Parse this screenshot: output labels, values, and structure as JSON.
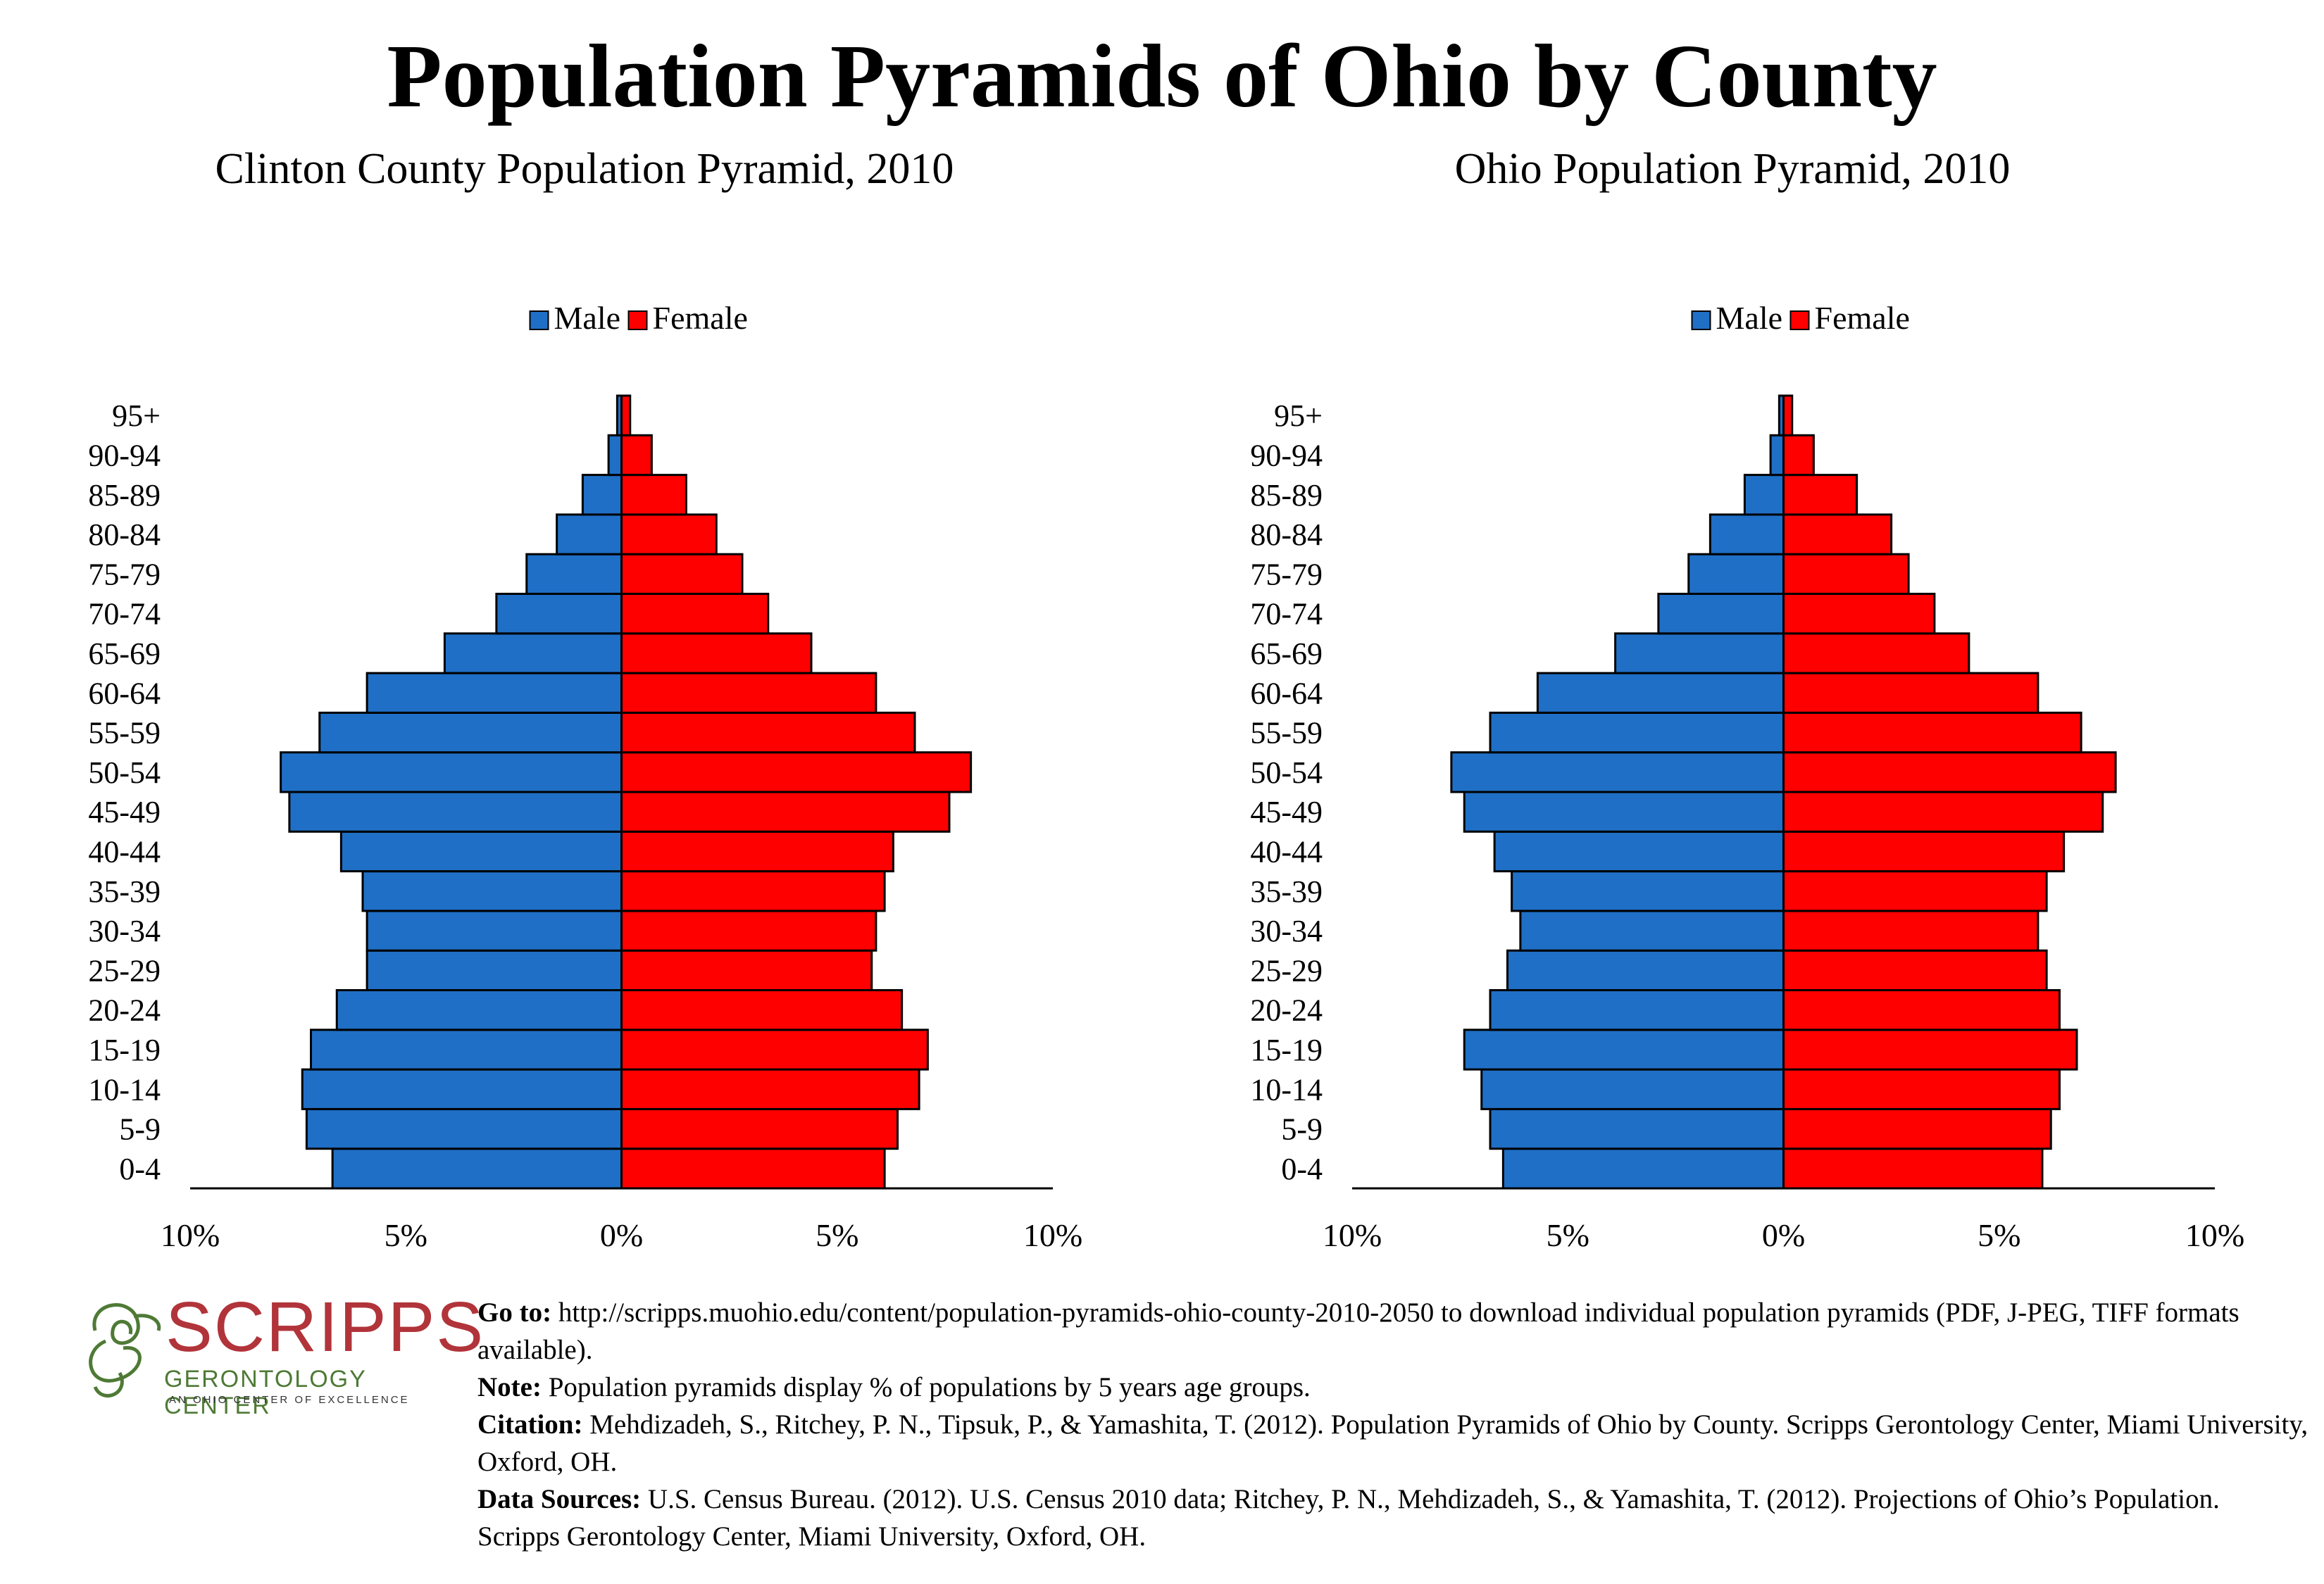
{
  "title": "Population Pyramids of Ohio by County",
  "legend": {
    "male": "Male",
    "female": "Female",
    "male_color": "#1f6fc6",
    "female_color": "#ff0000"
  },
  "chart_data": [
    {
      "type": "bar",
      "title": "Clinton County Population Pyramid, 2010",
      "categories": [
        "0-4",
        "5-9",
        "10-14",
        "15-19",
        "20-24",
        "25-29",
        "30-34",
        "35-39",
        "40-44",
        "45-49",
        "50-54",
        "55-59",
        "60-64",
        "65-69",
        "70-74",
        "75-79",
        "80-84",
        "85-89",
        "90-94",
        "95+"
      ],
      "series": [
        {
          "name": "Male",
          "values": [
            6.7,
            7.3,
            7.4,
            7.2,
            6.6,
            5.9,
            5.9,
            6.0,
            6.5,
            7.7,
            7.9,
            7.0,
            5.9,
            4.1,
            2.9,
            2.2,
            1.5,
            0.9,
            0.3,
            0.1
          ]
        },
        {
          "name": "Female",
          "values": [
            6.1,
            6.4,
            6.9,
            7.1,
            6.5,
            5.8,
            5.9,
            6.1,
            6.3,
            7.6,
            8.1,
            6.8,
            5.9,
            4.4,
            3.4,
            2.8,
            2.2,
            1.5,
            0.7,
            0.2
          ]
        }
      ],
      "xlim": [
        -10,
        10
      ],
      "x_ticks": [
        "10%",
        "5%",
        "0%",
        "5%",
        "10%"
      ]
    },
    {
      "type": "bar",
      "title": "Ohio Population Pyramid, 2010",
      "categories": [
        "0-4",
        "5-9",
        "10-14",
        "15-19",
        "20-24",
        "25-29",
        "30-34",
        "35-39",
        "40-44",
        "45-49",
        "50-54",
        "55-59",
        "60-64",
        "65-69",
        "70-74",
        "75-79",
        "80-84",
        "85-89",
        "90-94",
        "95+"
      ],
      "series": [
        {
          "name": "Male",
          "values": [
            6.5,
            6.8,
            7.0,
            7.4,
            6.8,
            6.4,
            6.1,
            6.3,
            6.7,
            7.4,
            7.7,
            6.8,
            5.7,
            3.9,
            2.9,
            2.2,
            1.7,
            0.9,
            0.3,
            0.1
          ]
        },
        {
          "name": "Female",
          "values": [
            6.0,
            6.2,
            6.4,
            6.8,
            6.4,
            6.1,
            5.9,
            6.1,
            6.5,
            7.4,
            7.7,
            6.9,
            5.9,
            4.3,
            3.5,
            2.9,
            2.5,
            1.7,
            0.7,
            0.2
          ]
        }
      ],
      "xlim": [
        -10,
        10
      ],
      "x_ticks": [
        "10%",
        "5%",
        "0%",
        "5%",
        "10%"
      ]
    }
  ],
  "logo": {
    "wordmark": "SCRIPPS",
    "subtitle": "GERONTOLOGY CENTER",
    "tagline": "AN OHIO CENTER OF EXCELLENCE",
    "red": "#b1343a",
    "green": "#4e7a35"
  },
  "notes": {
    "goto_label": "Go to:",
    "goto_text": " http://scripps.muohio.edu/content/population-pyramids-ohio-county-2010-2050 to download individual population pyramids (PDF, J-PEG, TIFF formats available).",
    "note_label": "Note:",
    "note_text": " Population pyramids display % of populations by 5 years age groups.",
    "citation_label": "Citation:",
    "citation_text": " Mehdizadeh, S., Ritchey, P. N., Tipsuk, P., & Yamashita, T. (2012). Population Pyramids of Ohio by County. Scripps Gerontology Center, Miami University, Oxford, OH.",
    "sources_label": "Data Sources:",
    "sources_text": " U.S. Census Bureau. (2012). U.S. Census 2010 data; Ritchey, P. N., Mehdizadeh, S., & Yamashita, T. (2012). Projections of Ohio’s Population. Scripps Gerontology Center, Miami University, Oxford, OH."
  }
}
